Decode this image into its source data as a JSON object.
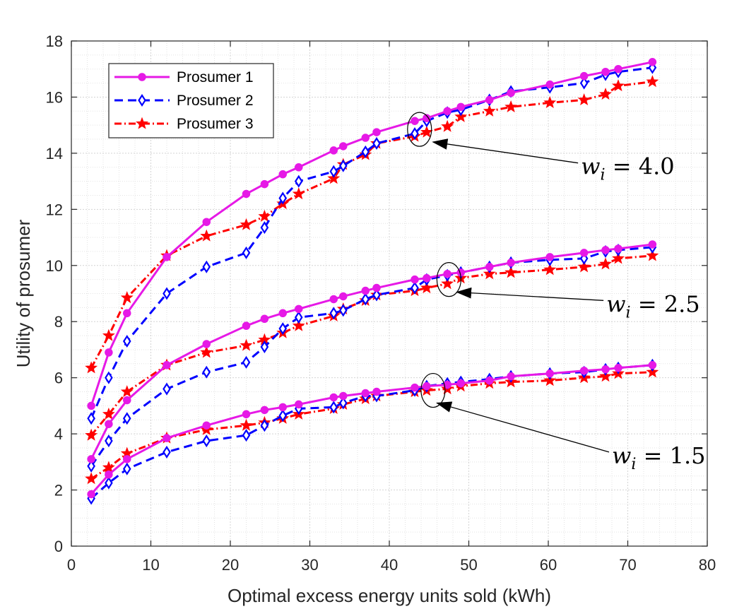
{
  "chart_data": {
    "type": "line",
    "xlabel": "Optimal excess energy units sold (kWh)",
    "ylabel": "Utility of prosumer",
    "xlim": [
      0,
      80
    ],
    "ylim": [
      0,
      18
    ],
    "xticks": [
      0,
      10,
      20,
      30,
      40,
      50,
      60,
      70,
      80
    ],
    "yticks": [
      0,
      2,
      4,
      6,
      8,
      10,
      12,
      14,
      16,
      18
    ],
    "grid": true,
    "minor_grid": true,
    "legend_position": "top-left",
    "x": [
      2.5,
      4.7,
      7.0,
      12.0,
      17.0,
      22.0,
      24.3,
      26.6,
      28.6,
      33.0,
      34.2,
      37.0,
      38.4,
      43.2,
      44.7,
      47.3,
      49.0,
      52.6,
      55.3,
      60.2,
      64.5,
      67.2,
      68.8,
      73.1
    ],
    "groups": [
      {
        "w": "4.0",
        "series": [
          {
            "name": "Prosumer 1",
            "values": [
              5.0,
              6.9,
              8.3,
              10.3,
              11.55,
              12.55,
              12.9,
              13.25,
              13.5,
              14.1,
              14.25,
              14.55,
              14.75,
              15.15,
              15.25,
              15.5,
              15.65,
              15.9,
              16.15,
              16.45,
              16.75,
              16.9,
              17.0,
              17.25
            ]
          },
          {
            "name": "Prosumer 2",
            "values": [
              4.55,
              6.0,
              7.3,
              9.0,
              9.95,
              10.45,
              11.35,
              12.4,
              13.0,
              13.35,
              13.55,
              14.05,
              14.35,
              14.7,
              15.15,
              15.45,
              15.55,
              15.9,
              16.2,
              16.35,
              16.5,
              16.8,
              16.9,
              17.05
            ]
          },
          {
            "name": "Prosumer 3",
            "values": [
              6.35,
              7.5,
              8.85,
              10.35,
              11.05,
              11.45,
              11.75,
              12.2,
              12.55,
              13.1,
              13.6,
              13.95,
              14.35,
              14.6,
              14.75,
              14.95,
              15.3,
              15.5,
              15.65,
              15.8,
              15.9,
              16.1,
              16.4,
              16.55
            ]
          }
        ]
      },
      {
        "w": "2.5",
        "series": [
          {
            "name": "Prosumer 1",
            "values": [
              3.1,
              4.35,
              5.2,
              6.45,
              7.2,
              7.85,
              8.1,
              8.3,
              8.45,
              8.8,
              8.9,
              9.1,
              9.2,
              9.5,
              9.55,
              9.7,
              9.75,
              9.95,
              10.1,
              10.3,
              10.45,
              10.55,
              10.6,
              10.75
            ]
          },
          {
            "name": "Prosumer 2",
            "values": [
              2.85,
              3.75,
              4.55,
              5.6,
              6.2,
              6.55,
              7.1,
              7.75,
              8.15,
              8.3,
              8.4,
              8.8,
              8.95,
              9.2,
              9.5,
              9.65,
              9.75,
              9.95,
              10.1,
              10.2,
              10.25,
              10.5,
              10.55,
              10.65
            ]
          },
          {
            "name": "Prosumer 3",
            "values": [
              3.95,
              4.7,
              5.5,
              6.45,
              6.9,
              7.15,
              7.35,
              7.6,
              7.85,
              8.2,
              8.45,
              8.75,
              8.95,
              9.1,
              9.2,
              9.35,
              9.55,
              9.7,
              9.75,
              9.85,
              9.95,
              10.05,
              10.25,
              10.35
            ]
          }
        ]
      },
      {
        "w": "1.5",
        "series": [
          {
            "name": "Prosumer 1",
            "values": [
              1.85,
              2.55,
              3.1,
              3.85,
              4.3,
              4.7,
              4.85,
              4.95,
              5.05,
              5.3,
              5.35,
              5.45,
              5.5,
              5.65,
              5.7,
              5.75,
              5.8,
              5.9,
              6.05,
              6.15,
              6.25,
              6.3,
              6.35,
              6.45
            ]
          },
          {
            "name": "Prosumer 2",
            "values": [
              1.7,
              2.25,
              2.75,
              3.35,
              3.75,
              3.95,
              4.3,
              4.65,
              4.9,
              4.95,
              5.1,
              5.35,
              5.35,
              5.55,
              5.7,
              5.8,
              5.85,
              5.95,
              6.05,
              6.15,
              6.2,
              6.3,
              6.35,
              6.45
            ]
          },
          {
            "name": "Prosumer 3",
            "values": [
              2.4,
              2.8,
              3.3,
              3.85,
              4.15,
              4.3,
              4.4,
              4.55,
              4.7,
              4.9,
              5.05,
              5.25,
              5.35,
              5.5,
              5.55,
              5.6,
              5.7,
              5.8,
              5.85,
              5.9,
              6.0,
              6.05,
              6.15,
              6.2
            ]
          }
        ]
      }
    ],
    "legend": [
      "Prosumer 1",
      "Prosumer 2",
      "Prosumer 3"
    ],
    "annotations": [
      {
        "text_main": "w",
        "text_sub": "i",
        "text_rest": " = 4.0",
        "label_x": 64.1,
        "label_y": 13.25,
        "circle_x": 43.8,
        "circle_y": 14.85,
        "arrow_tip_x": 45.5,
        "arrow_tip_y": 14.4
      },
      {
        "text_main": "w",
        "text_sub": "i",
        "text_rest": " = 2.5",
        "label_x": 67.3,
        "label_y": 8.35,
        "circle_x": 47.5,
        "circle_y": 9.5,
        "arrow_tip_x": 48.5,
        "arrow_tip_y": 9.05
      },
      {
        "text_main": "w",
        "text_sub": "i",
        "text_rest": " = 1.5",
        "label_x": 68.0,
        "label_y": 2.95,
        "circle_x": 45.5,
        "circle_y": 5.55,
        "arrow_tip_x": 46.0,
        "arrow_tip_y": 5.1
      }
    ],
    "colors": {
      "Prosumer 1": "#e619e6",
      "Prosumer 2": "#0000ff",
      "Prosumer 3": "#ff0000",
      "grid": "#d4d4d4",
      "axis": "#262626"
    }
  }
}
